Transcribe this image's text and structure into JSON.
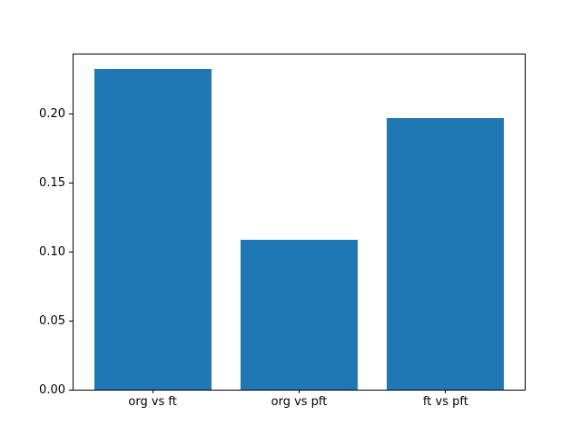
{
  "chart_data": {
    "type": "bar",
    "title": "",
    "xlabel": "",
    "ylabel": "",
    "categories": [
      "org vs ft",
      "org vs pft",
      "ft vs pft"
    ],
    "values": [
      0.233,
      0.109,
      0.197
    ],
    "ytick_labels": [
      "0.00",
      "0.05",
      "0.10",
      "0.15",
      "0.20"
    ],
    "ytick_values": [
      0.0,
      0.05,
      0.1,
      0.15,
      0.2
    ],
    "ylim": [
      0,
      0.2435
    ],
    "xlim": [
      -0.54,
      2.54
    ],
    "bar_width": 0.8,
    "bar_color": "#1f77b4",
    "axis_color": "#000000",
    "background_color": "#ffffff",
    "grid": false,
    "legend": null
  }
}
